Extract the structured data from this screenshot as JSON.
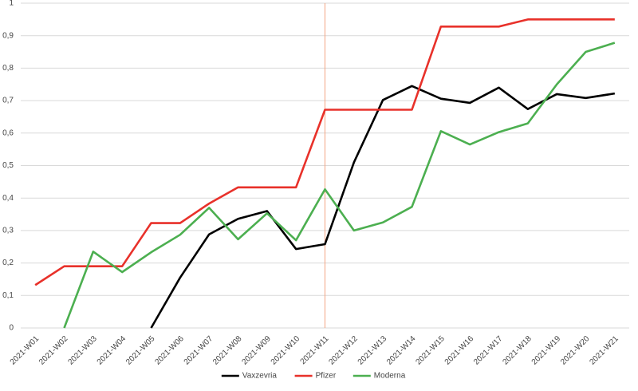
{
  "chart_data": {
    "type": "line",
    "categories": [
      "2021-W01",
      "2021-W02",
      "2021-W03",
      "2021-W04",
      "2021-W05",
      "2021-W06",
      "2021-W07",
      "2021-W08",
      "2021-W09",
      "2021-W10",
      "2021-W11",
      "2021-W12",
      "2021-W13",
      "2021-W14",
      "2021-W15",
      "2021-W16",
      "2021-W17",
      "2021-W18",
      "2021-W19",
      "2021-W20",
      "2021-W21"
    ],
    "series": [
      {
        "name": "Vaxzevria",
        "color": "#000000",
        "values": [
          null,
          null,
          null,
          null,
          0,
          0.155,
          0.288,
          0.336,
          0.36,
          0.243,
          0.258,
          0.51,
          0.702,
          0.745,
          0.706,
          0.693,
          0.74,
          0.674,
          0.72,
          0.708,
          0.722
        ]
      },
      {
        "name": "Pfizer",
        "color": "#e8312a",
        "values": [
          0.132,
          0.19,
          0.19,
          0.19,
          0.323,
          0.323,
          0.383,
          0.433,
          0.433,
          0.433,
          0.672,
          0.672,
          0.672,
          0.672,
          0.928,
          0.928,
          0.928,
          0.95,
          0.95,
          0.95,
          0.95
        ]
      },
      {
        "name": "Moderna",
        "color": "#4caf50",
        "values": [
          null,
          0,
          0.235,
          0.172,
          0.233,
          0.287,
          0.37,
          0.273,
          0.353,
          0.27,
          0.427,
          0.3,
          0.325,
          0.373,
          0.606,
          0.565,
          0.603,
          0.63,
          0.75,
          0.85,
          0.878
        ]
      }
    ],
    "ylim": [
      0,
      1
    ],
    "yticks": [
      0,
      {
        "value": 0.1,
        "label": "0,1"
      },
      {
        "value": 0.2,
        "label": "0,2"
      },
      {
        "value": 0.3,
        "label": "0,3"
      },
      {
        "value": 0.4,
        "label": "0,4"
      },
      {
        "value": 0.5,
        "label": "0,5"
      },
      {
        "value": 0.6,
        "label": "0,6"
      },
      {
        "value": 0.7,
        "label": "0,7"
      },
      {
        "value": 0.8,
        "label": "0,8"
      },
      {
        "value": 0.9,
        "label": "0,9"
      },
      1
    ],
    "grid": true,
    "legend": "bottom",
    "reference_line": {
      "x": "2021-W11",
      "color": "#f4a582"
    }
  }
}
